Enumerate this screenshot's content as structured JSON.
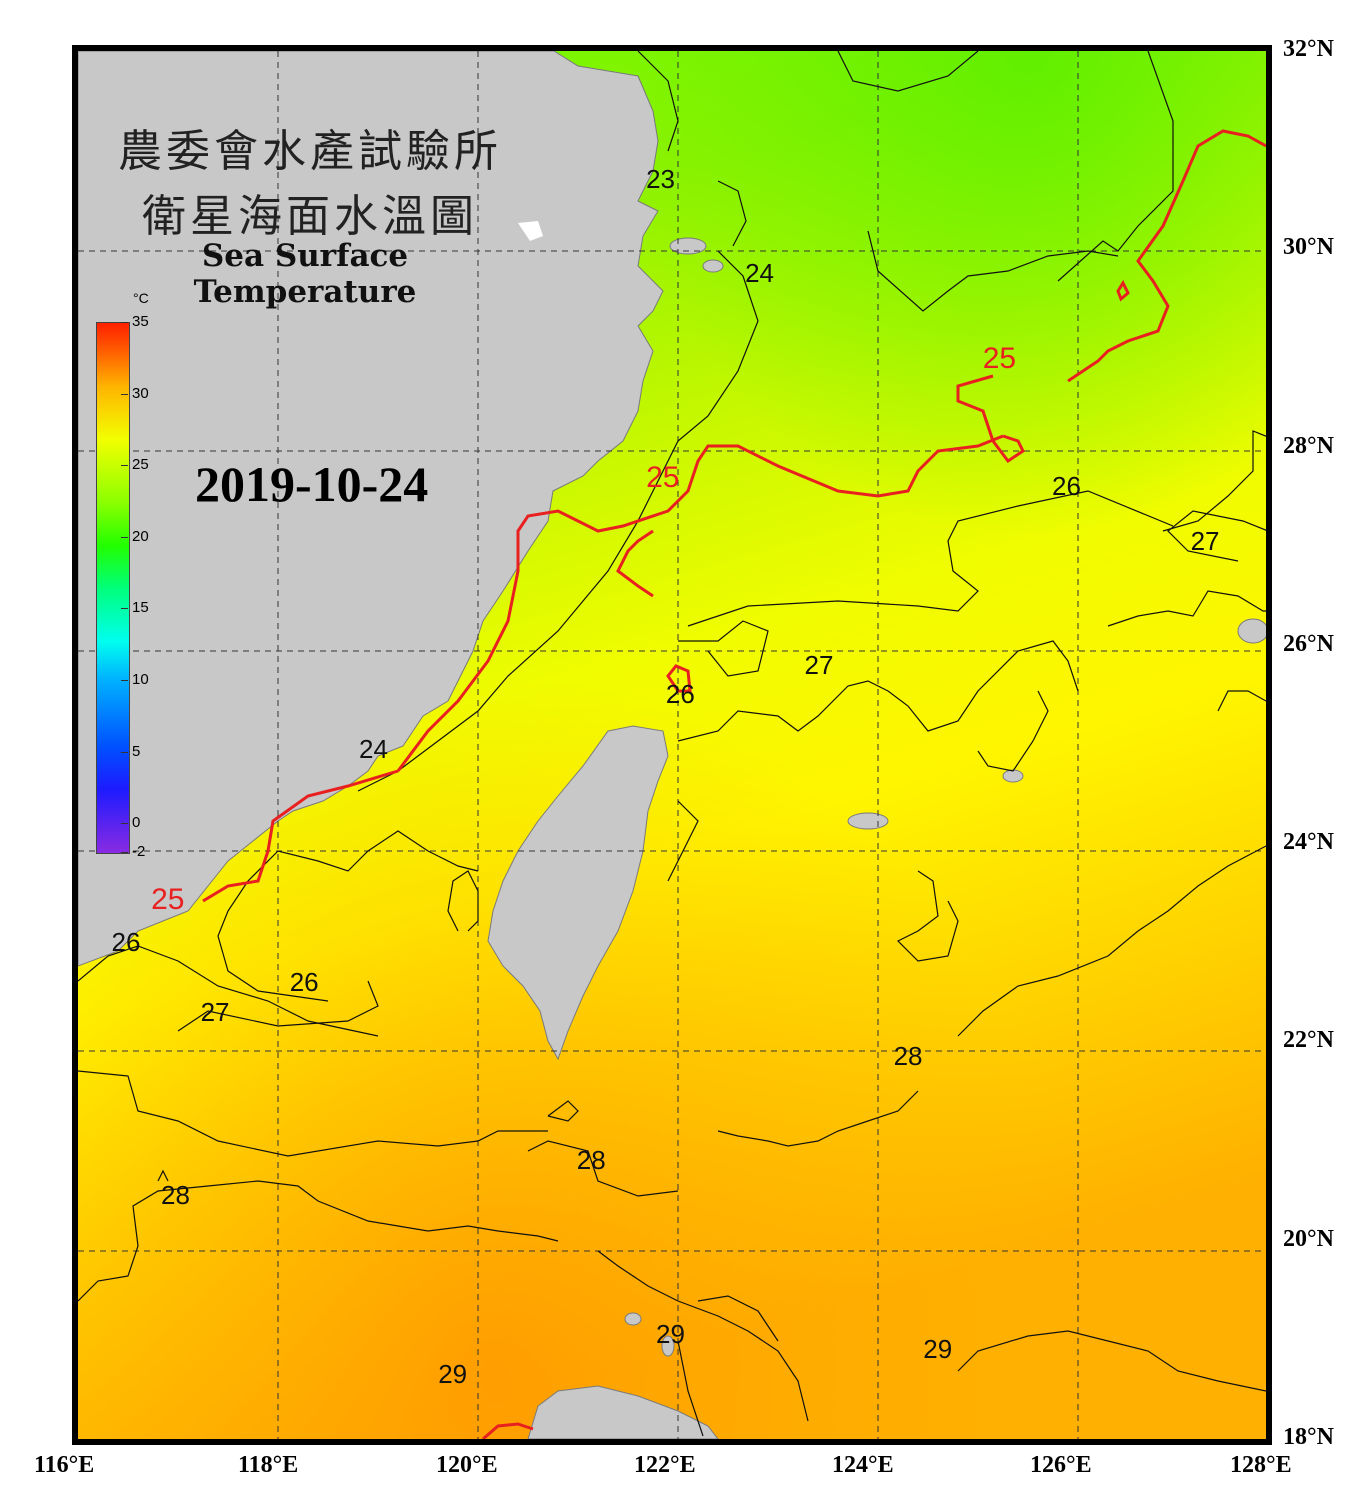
{
  "title": {
    "zh_line1": "農委會水產試驗所",
    "zh_line2": "衛星海面水溫圖",
    "en": "Sea Surface Temperature"
  },
  "date": "2019-10-24",
  "colorbar": {
    "unit": "°C",
    "labels": [
      "35",
      "30",
      "25",
      "20",
      "15",
      "10",
      "5",
      "0",
      "-2"
    ],
    "colors": {
      "min": "#8a2be2",
      "cold": "#0050ff",
      "mid": "#22ff00",
      "warm": "#f2ff00",
      "hot": "#ff2000"
    }
  },
  "axes": {
    "lon_labels": [
      "116°E",
      "118°E",
      "120°E",
      "122°E",
      "124°E",
      "126°E",
      "128°E"
    ],
    "lat_labels": [
      "32°N",
      "30°N",
      "28°N",
      "26°N",
      "24°N",
      "22°N",
      "20°N",
      "18°N"
    ],
    "lon_range": [
      116,
      128
    ],
    "lat_range": [
      18,
      32
    ],
    "grid": "dashed"
  },
  "contours": {
    "labels": [
      {
        "text": "23",
        "lon": 121.9,
        "lat": 30.7
      },
      {
        "text": "24",
        "lon": 122.9,
        "lat": 29.75
      },
      {
        "text": "25",
        "lon": 125.3,
        "lat": 28.9
      },
      {
        "text": "25",
        "lon": 121.9,
        "lat": 27.7
      },
      {
        "text": "26",
        "lon": 126.0,
        "lat": 27.6
      },
      {
        "text": "27",
        "lon": 127.4,
        "lat": 27.05
      },
      {
        "text": "27",
        "lon": 123.5,
        "lat": 25.8
      },
      {
        "text": "26",
        "lon": 122.1,
        "lat": 25.5
      },
      {
        "text": "26",
        "lon": 116.5,
        "lat": 23.0
      },
      {
        "text": "26",
        "lon": 118.3,
        "lat": 22.6
      },
      {
        "text": "27",
        "lon": 117.4,
        "lat": 22.3
      },
      {
        "text": "28",
        "lon": 124.4,
        "lat": 21.85
      },
      {
        "text": "28",
        "lon": 121.2,
        "lat": 20.8
      },
      {
        "text": "28",
        "lon": 117.0,
        "lat": 20.45
      },
      {
        "text": "29",
        "lon": 122.0,
        "lat": 19.05
      },
      {
        "text": "29",
        "lon": 124.7,
        "lat": 18.9
      },
      {
        "text": "29",
        "lon": 119.8,
        "lat": 18.65
      },
      {
        "text": "24",
        "lon": 119.0,
        "lat": 24.95
      },
      {
        "text": "25",
        "lon": 116.9,
        "lat": 23.45
      }
    ],
    "highlight_isotherm": "25",
    "highlight_color": "#e82020"
  },
  "land_color": "#c8c8c8"
}
